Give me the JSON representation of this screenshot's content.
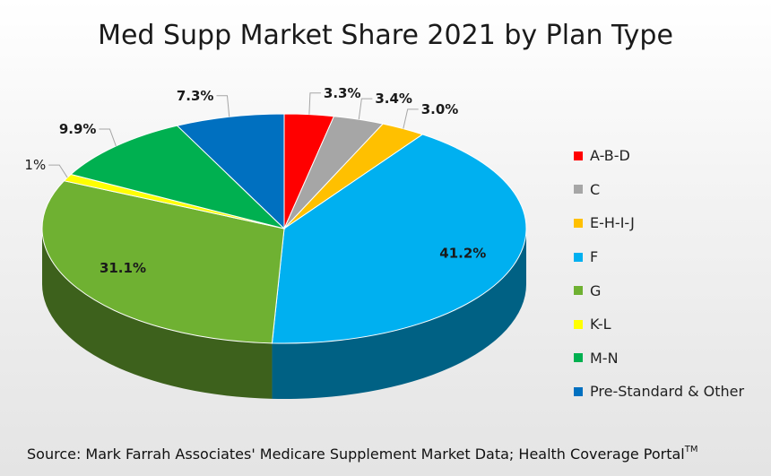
{
  "chart_data": {
    "type": "pie",
    "title": "Med Supp Market Share 2021 by Plan Type",
    "series": [
      {
        "name": "A-B-D",
        "value": 3.3,
        "label": "3.3%",
        "color": "#ff0000"
      },
      {
        "name": "C",
        "value": 3.4,
        "label": "3.4%",
        "color": "#a6a6a6"
      },
      {
        "name": "E-H-I-J",
        "value": 3.0,
        "label": "3.0%",
        "color": "#ffc000"
      },
      {
        "name": "F",
        "value": 41.2,
        "label": "41.2%",
        "color": "#00b0f0"
      },
      {
        "name": "G",
        "value": 31.1,
        "label": "31.1%",
        "color": "#6fb132"
      },
      {
        "name": "K-L",
        "value": 1,
        "label": "1%",
        "color": "#ffff00"
      },
      {
        "name": "M-N",
        "value": 9.9,
        "label": "9.9%",
        "color": "#00b050"
      },
      {
        "name": "Pre-Standard & Other",
        "value": 7.3,
        "label": "7.3%",
        "color": "#0070c0"
      }
    ],
    "legend_position": "right",
    "three_d": true
  },
  "source": {
    "text": "Source:  Mark Farrah Associates' Medicare Supplement Market Data; Health Coverage Portal",
    "trademark": "TM"
  }
}
